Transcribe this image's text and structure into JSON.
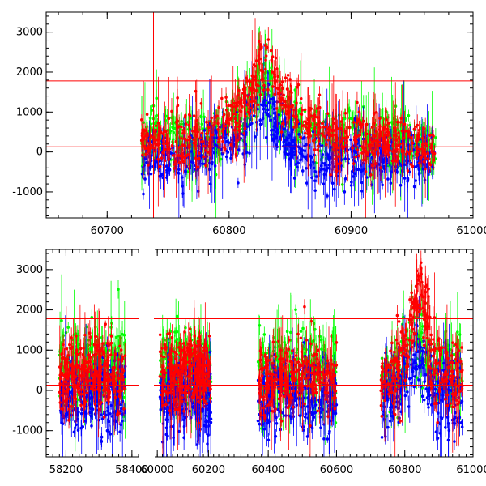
{
  "chart_data": [
    {
      "type": "scatter",
      "title": "",
      "xlabel": "",
      "ylabel": "",
      "xlim": [
        60650,
        61000
      ],
      "ylim": [
        -1650,
        3500
      ],
      "x_ticks": [
        60700,
        60800,
        60900,
        61000
      ],
      "y_ticks": [
        -1000,
        0,
        1000,
        2000,
        3000
      ],
      "reference_lines_y": [
        1780,
        130
      ],
      "series": [
        {
          "color": "#00ff00",
          "points": [
            [
              60730,
              200
            ],
            [
              60740,
              600
            ],
            [
              60755,
              300
            ],
            [
              60770,
              250
            ],
            [
              60790,
              400
            ],
            [
              60800,
              700
            ],
            [
              60812,
              900
            ],
            [
              60820,
              1400
            ],
            [
              60830,
              1900
            ],
            [
              60840,
              1000
            ],
            [
              60855,
              800
            ],
            [
              60870,
              500
            ],
            [
              60885,
              300
            ],
            [
              60900,
              700
            ],
            [
              60915,
              300
            ],
            [
              60930,
              400
            ],
            [
              60945,
              350
            ],
            [
              60960,
              200
            ]
          ]
        },
        {
          "color": "#0000ff",
          "points": [
            [
              60730,
              -200
            ],
            [
              60742,
              -100
            ],
            [
              60758,
              -300
            ],
            [
              60772,
              -150
            ],
            [
              60788,
              100
            ],
            [
              60800,
              200
            ],
            [
              60812,
              300
            ],
            [
              60820,
              700
            ],
            [
              60828,
              1200
            ],
            [
              60836,
              800
            ],
            [
              60850,
              200
            ],
            [
              60866,
              -100
            ],
            [
              60880,
              -300
            ],
            [
              60895,
              -100
            ],
            [
              60910,
              -200
            ],
            [
              60925,
              -150
            ],
            [
              60940,
              -300
            ],
            [
              60958,
              -250
            ],
            [
              60968,
              -100
            ]
          ]
        },
        {
          "color": "#ff0000",
          "points": [
            [
              60730,
              250
            ],
            [
              60738,
              300
            ],
            [
              60750,
              200
            ],
            [
              60762,
              300
            ],
            [
              60776,
              350
            ],
            [
              60790,
              500
            ],
            [
              60802,
              800
            ],
            [
              60812,
              1100
            ],
            [
              60820,
              1600
            ],
            [
              60828,
              2200
            ],
            [
              60834,
              2300
            ],
            [
              60842,
              1300
            ],
            [
              60852,
              1000
            ],
            [
              60862,
              800
            ],
            [
              60874,
              500
            ],
            [
              60886,
              300
            ],
            [
              60898,
              400
            ],
            [
              60910,
              350
            ],
            [
              60922,
              300
            ],
            [
              60936,
              250
            ],
            [
              60950,
              200
            ],
            [
              60962,
              150
            ],
            [
              60968,
              200
            ]
          ]
        }
      ]
    },
    {
      "type": "scatter",
      "title": "",
      "xlabel": "",
      "ylabel": "",
      "broken_x_axis": true,
      "ylim": [
        -1650,
        3500
      ],
      "y_ticks": [
        -1000,
        0,
        1000,
        2000,
        3000
      ],
      "reference_lines_y": [
        1780,
        130
      ],
      "segments": [
        {
          "xlim": [
            58140,
            58420
          ],
          "x_ticks": [
            58200,
            58400
          ],
          "data_range": [
            58180,
            58380
          ]
        },
        {
          "xlim": [
            59990,
            60300
          ],
          "x_ticks": [
            60000,
            60200
          ],
          "data_range": [
            60010,
            60210
          ]
        },
        {
          "xlim": [
            60300,
            61000
          ],
          "x_ticks": [
            60400,
            60600,
            60800,
            61000
          ],
          "data_range": [
            [
              60370,
              60600
            ],
            [
              60730,
              60970
            ]
          ]
        }
      ],
      "series": [
        {
          "color": "#00ff00",
          "points": [
            [
              58200,
              500
            ],
            [
              58250,
              600
            ],
            [
              58300,
              700
            ],
            [
              58350,
              600
            ],
            [
              60030,
              500
            ],
            [
              60100,
              600
            ],
            [
              60160,
              700
            ],
            [
              60200,
              400
            ],
            [
              60400,
              400
            ],
            [
              60470,
              600
            ],
            [
              60540,
              500
            ],
            [
              60590,
              300
            ],
            [
              60750,
              300
            ],
            [
              60800,
              800
            ],
            [
              60830,
              1500
            ],
            [
              60880,
              600
            ],
            [
              60940,
              400
            ]
          ]
        },
        {
          "color": "#0000ff",
          "points": [
            [
              58200,
              -200
            ],
            [
              58260,
              -100
            ],
            [
              58320,
              0
            ],
            [
              58370,
              -250
            ],
            [
              60040,
              -200
            ],
            [
              60110,
              -100
            ],
            [
              60170,
              0
            ],
            [
              60210,
              -300
            ],
            [
              60390,
              -250
            ],
            [
              60460,
              -100
            ],
            [
              60530,
              -200
            ],
            [
              60590,
              -300
            ],
            [
              60760,
              -100
            ],
            [
              60810,
              300
            ],
            [
              60840,
              900
            ],
            [
              60890,
              -100
            ],
            [
              60950,
              -200
            ]
          ]
        },
        {
          "color": "#ff0000",
          "points": [
            [
              58190,
              300
            ],
            [
              58240,
              500
            ],
            [
              58290,
              600
            ],
            [
              58340,
              500
            ],
            [
              58380,
              300
            ],
            [
              60020,
              300
            ],
            [
              60080,
              400
            ],
            [
              60140,
              600
            ],
            [
              60190,
              500
            ],
            [
              60380,
              200
            ],
            [
              60440,
              300
            ],
            [
              60500,
              500
            ],
            [
              60560,
              400
            ],
            [
              60600,
              250
            ],
            [
              60740,
              200
            ],
            [
              60800,
              900
            ],
            [
              60830,
              2000
            ],
            [
              60850,
              2400
            ],
            [
              60880,
              800
            ],
            [
              60920,
              500
            ],
            [
              60960,
              300
            ]
          ]
        }
      ]
    }
  ]
}
